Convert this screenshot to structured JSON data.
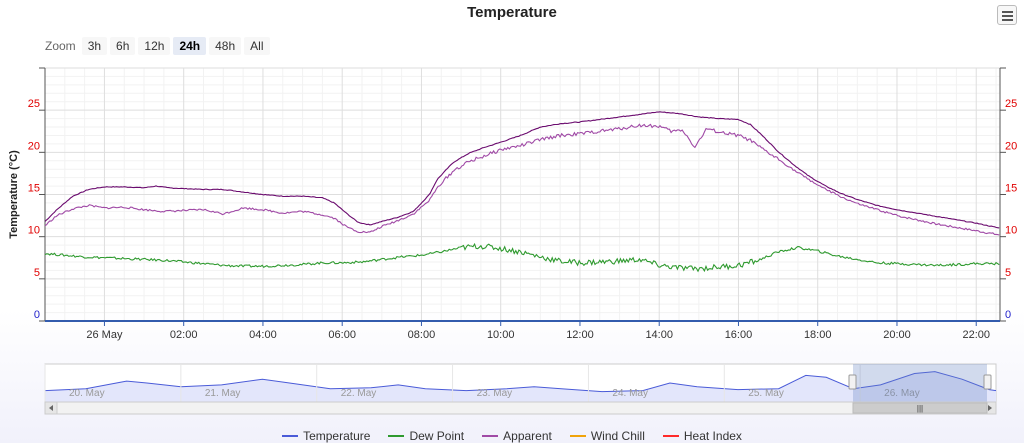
{
  "title": "Temperature",
  "menu_icon": "hamburger-menu-icon",
  "zoom": {
    "label": "Zoom",
    "buttons": [
      "3h",
      "6h",
      "12h",
      "24h",
      "48h",
      "All"
    ],
    "active": "24h"
  },
  "chart_data": {
    "type": "line",
    "title": "Temperature",
    "ylabel": "Temperature (°C)",
    "xlabel": "",
    "ylim": [
      0,
      30
    ],
    "y_ticks": [
      "0",
      "5",
      "10",
      "15",
      "20",
      "25"
    ],
    "x_range_hours": [
      -1.5,
      22.6
    ],
    "x_ticks": [
      {
        "h": 0,
        "label": "26 May"
      },
      {
        "h": 2,
        "label": "02:00"
      },
      {
        "h": 4,
        "label": "04:00"
      },
      {
        "h": 6,
        "label": "06:00"
      },
      {
        "h": 8,
        "label": "08:00"
      },
      {
        "h": 10,
        "label": "10:00"
      },
      {
        "h": 12,
        "label": "12:00"
      },
      {
        "h": 14,
        "label": "14:00"
      },
      {
        "h": 16,
        "label": "16:00"
      },
      {
        "h": 18,
        "label": "18:00"
      },
      {
        "h": 20,
        "label": "20:00"
      },
      {
        "h": 22,
        "label": "22:00"
      }
    ],
    "series": [
      {
        "name": "Temperature",
        "color": "#6a0a6e",
        "points": [
          [
            -1.5,
            11.8
          ],
          [
            -1.2,
            13.2
          ],
          [
            -0.8,
            14.8
          ],
          [
            -0.4,
            15.6
          ],
          [
            0,
            15.9
          ],
          [
            0.5,
            15.9
          ],
          [
            1,
            15.8
          ],
          [
            1.3,
            16.0
          ],
          [
            1.6,
            15.8
          ],
          [
            2,
            15.7
          ],
          [
            2.5,
            15.6
          ],
          [
            3,
            15.6
          ],
          [
            3.5,
            15.3
          ],
          [
            4,
            15.0
          ],
          [
            4.5,
            14.8
          ],
          [
            5,
            14.8
          ],
          [
            5.5,
            14.6
          ],
          [
            5.8,
            14.0
          ],
          [
            6.1,
            12.8
          ],
          [
            6.4,
            11.7
          ],
          [
            6.7,
            11.4
          ],
          [
            7,
            11.8
          ],
          [
            7.4,
            12.3
          ],
          [
            7.8,
            13.0
          ],
          [
            8.2,
            15.0
          ],
          [
            8.4,
            16.8
          ],
          [
            8.8,
            18.8
          ],
          [
            9.2,
            19.9
          ],
          [
            9.6,
            20.6
          ],
          [
            10,
            21.2
          ],
          [
            10.5,
            22.0
          ],
          [
            11,
            23.0
          ],
          [
            11.5,
            23.4
          ],
          [
            12,
            23.6
          ],
          [
            12.5,
            23.9
          ],
          [
            13,
            24.2
          ],
          [
            13.5,
            24.5
          ],
          [
            14,
            24.8
          ],
          [
            14.5,
            24.6
          ],
          [
            15,
            24.2
          ],
          [
            15.5,
            24.0
          ],
          [
            16,
            23.9
          ],
          [
            16.3,
            23.3
          ],
          [
            16.6,
            22.0
          ],
          [
            17,
            20.1
          ],
          [
            17.4,
            18.5
          ],
          [
            17.8,
            17.1
          ],
          [
            18.2,
            16.0
          ],
          [
            18.6,
            15.1
          ],
          [
            19,
            14.4
          ],
          [
            19.5,
            13.7
          ],
          [
            20,
            13.2
          ],
          [
            20.5,
            12.8
          ],
          [
            21,
            12.4
          ],
          [
            21.5,
            12.0
          ],
          [
            22,
            11.6
          ],
          [
            22.6,
            11.0
          ]
        ]
      },
      {
        "name": "Dew Point",
        "color": "#2f9a2f",
        "points": [
          [
            -1.5,
            8.0
          ],
          [
            -1,
            7.8
          ],
          [
            -0.5,
            7.6
          ],
          [
            0,
            7.5
          ],
          [
            0.5,
            7.4
          ],
          [
            1,
            7.3
          ],
          [
            1.5,
            7.2
          ],
          [
            2,
            7.0
          ],
          [
            2.5,
            6.8
          ],
          [
            3,
            6.6
          ],
          [
            3.5,
            6.5
          ],
          [
            4,
            6.5
          ],
          [
            4.5,
            6.6
          ],
          [
            5,
            6.7
          ],
          [
            5.5,
            6.9
          ],
          [
            6,
            6.9
          ],
          [
            6.5,
            7.0
          ],
          [
            7,
            7.3
          ],
          [
            7.5,
            7.6
          ],
          [
            8,
            7.8
          ],
          [
            8.5,
            8.2
          ],
          [
            9,
            8.7
          ],
          [
            9.5,
            8.9
          ],
          [
            10,
            8.6
          ],
          [
            10.5,
            8.2
          ],
          [
            11,
            7.6
          ],
          [
            11.5,
            7.1
          ],
          [
            12,
            6.9
          ],
          [
            12.5,
            7.0
          ],
          [
            13,
            7.1
          ],
          [
            13.5,
            7.3
          ],
          [
            14,
            6.6
          ],
          [
            14.5,
            6.3
          ],
          [
            15,
            6.2
          ],
          [
            15.5,
            6.4
          ],
          [
            16,
            6.6
          ],
          [
            16.5,
            7.2
          ],
          [
            17,
            8.2
          ],
          [
            17.5,
            8.7
          ],
          [
            18,
            8.3
          ],
          [
            18.5,
            7.7
          ],
          [
            19,
            7.3
          ],
          [
            19.5,
            6.9
          ],
          [
            20,
            6.8
          ],
          [
            20.5,
            6.7
          ],
          [
            21,
            6.6
          ],
          [
            21.5,
            6.7
          ],
          [
            22,
            6.8
          ],
          [
            22.6,
            6.8
          ]
        ]
      },
      {
        "name": "Apparent",
        "color": "#a04aa6",
        "points": [
          [
            -1.5,
            11.3
          ],
          [
            -1.2,
            12.5
          ],
          [
            -0.8,
            13.3
          ],
          [
            -0.4,
            13.7
          ],
          [
            0,
            13.4
          ],
          [
            0.5,
            13.5
          ],
          [
            1,
            13.2
          ],
          [
            1.5,
            13.0
          ],
          [
            2,
            13.1
          ],
          [
            2.5,
            13.2
          ],
          [
            3,
            12.7
          ],
          [
            3.5,
            13.4
          ],
          [
            4,
            13.2
          ],
          [
            4.5,
            12.8
          ],
          [
            5,
            13.0
          ],
          [
            5.5,
            12.6
          ],
          [
            5.8,
            12.2
          ],
          [
            6.1,
            11.2
          ],
          [
            6.4,
            10.6
          ],
          [
            6.7,
            10.5
          ],
          [
            7,
            11.2
          ],
          [
            7.4,
            11.9
          ],
          [
            7.8,
            12.7
          ],
          [
            8.2,
            14.3
          ],
          [
            8.4,
            15.8
          ],
          [
            8.8,
            17.8
          ],
          [
            9.2,
            18.9
          ],
          [
            9.6,
            19.6
          ],
          [
            10,
            20.3
          ],
          [
            10.5,
            20.8
          ],
          [
            11,
            21.5
          ],
          [
            11.5,
            22.0
          ],
          [
            12,
            22.2
          ],
          [
            12.5,
            22.5
          ],
          [
            13,
            22.8
          ],
          [
            13.5,
            23.2
          ],
          [
            14,
            23.1
          ],
          [
            14.3,
            22.5
          ],
          [
            14.6,
            22.6
          ],
          [
            14.9,
            20.6
          ],
          [
            15.2,
            22.8
          ],
          [
            15.6,
            22.3
          ],
          [
            16,
            22.0
          ],
          [
            16.3,
            21.4
          ],
          [
            16.6,
            20.4
          ],
          [
            17,
            19.2
          ],
          [
            17.4,
            17.9
          ],
          [
            17.8,
            16.7
          ],
          [
            18.2,
            15.6
          ],
          [
            18.6,
            14.7
          ],
          [
            19,
            13.9
          ],
          [
            19.5,
            13.2
          ],
          [
            20,
            12.5
          ],
          [
            20.5,
            12.0
          ],
          [
            21,
            11.5
          ],
          [
            21.5,
            11.1
          ],
          [
            22,
            10.7
          ],
          [
            22.6,
            10.2
          ]
        ]
      },
      {
        "name": "Wind Chill",
        "color": "#f0a30a",
        "points": []
      },
      {
        "name": "Heat Index",
        "color": "#ff2a2a",
        "points": []
      }
    ],
    "navigator": {
      "labels": [
        "20. May",
        "21. May",
        "22. May",
        "23. May",
        "24. May",
        "25. May",
        "26. May"
      ],
      "scrollbar_grip": "|||"
    },
    "grid": true,
    "legend_position": "bottom-center"
  },
  "colors": {
    "accent": "#335cad",
    "axis_left_label": "#e00000",
    "axis_zero_label": "#2222cc",
    "navigator_line": "#4a5bd8",
    "navigator_fill": "#e3e6fb",
    "navigator_mask": "rgba(102,133,194,0.3)"
  }
}
